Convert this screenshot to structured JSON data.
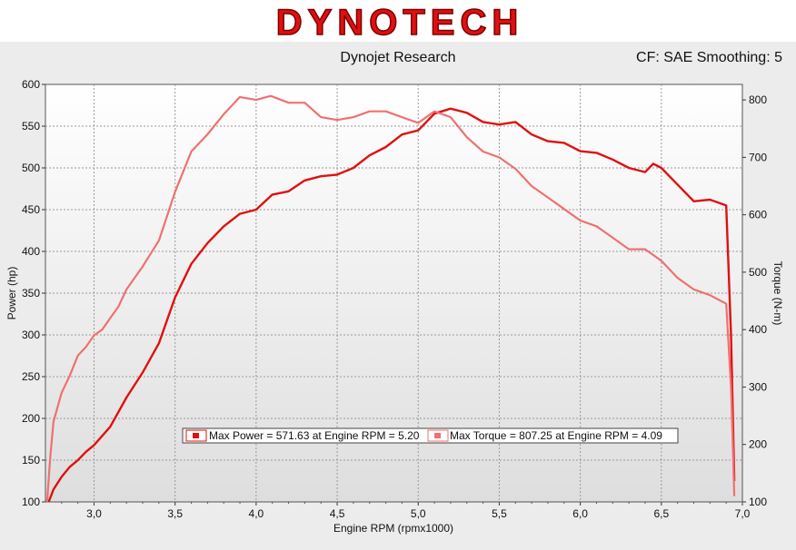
{
  "header": {
    "logo_text": "DYNOTECH",
    "title": "Dynojet Research",
    "info": "CF: SAE Smoothing: 5"
  },
  "colors": {
    "power": "#e01010",
    "torque": "#f07070",
    "logo": "#e01010"
  },
  "chart_data": {
    "type": "line",
    "xlabel": "Engine RPM (rpmx1000)",
    "ylabel": "Power (hp)",
    "y2label": "Torque (N-m)",
    "xlim": [
      2.7,
      7.0
    ],
    "ylim": [
      100,
      600
    ],
    "y2lim": [
      100,
      827
    ],
    "grid": true,
    "x_ticks": [
      "3,0",
      "3,5",
      "4,0",
      "4,5",
      "5,0",
      "5,5",
      "6,0",
      "6,5",
      "7,0"
    ],
    "y_ticks": [
      100,
      150,
      200,
      250,
      300,
      350,
      400,
      450,
      500,
      550,
      600
    ],
    "y2_ticks": [
      100,
      200,
      300,
      400,
      500,
      600,
      700,
      800
    ],
    "legend": [
      {
        "label": "Max Power = 571.63 at Engine RPM = 5.20"
      },
      {
        "label": "Max Torque = 807.25 at Engine RPM = 4.09"
      }
    ],
    "series": [
      {
        "axis": "left",
        "x": [
          2.72,
          2.75,
          2.8,
          2.85,
          2.9,
          2.95,
          3.0,
          3.1,
          3.2,
          3.3,
          3.4,
          3.5,
          3.6,
          3.7,
          3.8,
          3.9,
          4.0,
          4.1,
          4.2,
          4.3,
          4.4,
          4.5,
          4.6,
          4.7,
          4.8,
          4.9,
          5.0,
          5.1,
          5.2,
          5.3,
          5.4,
          5.5,
          5.6,
          5.7,
          5.8,
          5.9,
          6.0,
          6.1,
          6.2,
          6.3,
          6.4,
          6.45,
          6.5,
          6.6,
          6.7,
          6.8,
          6.9,
          6.93,
          6.95
        ],
        "values": [
          100,
          115,
          130,
          142,
          150,
          160,
          168,
          190,
          225,
          255,
          290,
          345,
          385,
          410,
          430,
          445,
          450,
          468,
          472,
          485,
          490,
          492,
          500,
          515,
          525,
          540,
          545,
          565,
          571,
          566,
          555,
          552,
          555,
          540,
          532,
          530,
          520,
          518,
          510,
          500,
          495,
          505,
          500,
          480,
          460,
          462,
          455,
          300,
          125
        ]
      },
      {
        "axis": "right",
        "x": [
          2.71,
          2.73,
          2.75,
          2.8,
          2.85,
          2.9,
          2.95,
          3.0,
          3.05,
          3.1,
          3.15,
          3.2,
          3.3,
          3.4,
          3.5,
          3.6,
          3.7,
          3.8,
          3.9,
          4.0,
          4.09,
          4.2,
          4.3,
          4.4,
          4.5,
          4.6,
          4.7,
          4.8,
          4.9,
          5.0,
          5.1,
          5.2,
          5.3,
          5.4,
          5.5,
          5.6,
          5.7,
          5.8,
          5.9,
          6.0,
          6.1,
          6.2,
          6.3,
          6.4,
          6.5,
          6.6,
          6.7,
          6.8,
          6.9,
          6.93,
          6.95
        ],
        "values": [
          100,
          180,
          240,
          290,
          320,
          355,
          370,
          390,
          400,
          420,
          440,
          470,
          510,
          555,
          640,
          710,
          740,
          775,
          805,
          800,
          807,
          795,
          795,
          770,
          765,
          770,
          780,
          780,
          770,
          760,
          780,
          770,
          735,
          710,
          700,
          680,
          650,
          630,
          610,
          590,
          580,
          560,
          540,
          540,
          520,
          490,
          470,
          460,
          445,
          300,
          110
        ]
      }
    ]
  }
}
